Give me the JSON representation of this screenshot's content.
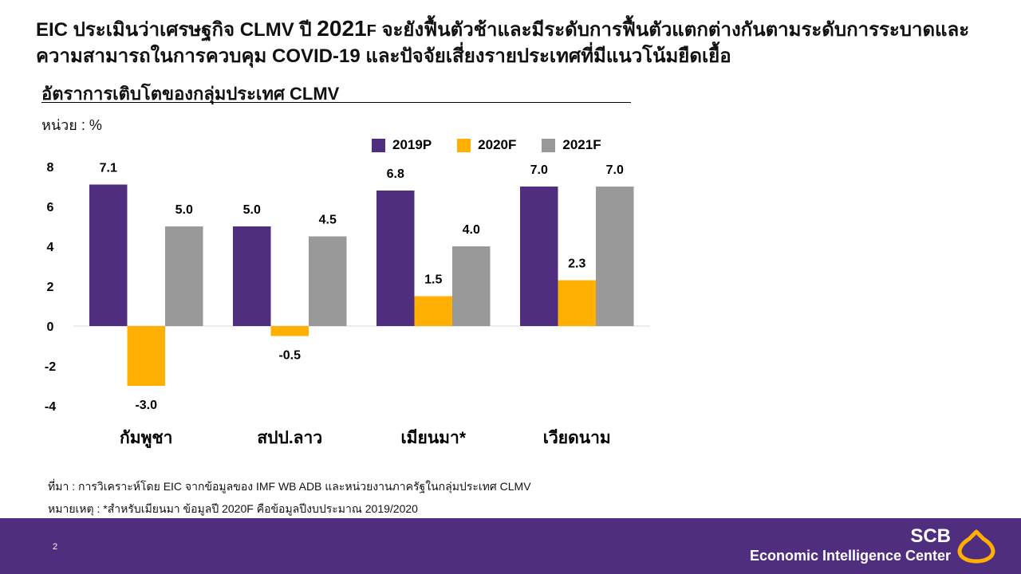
{
  "headline": {
    "part1": "EIC ประเมินว่าเศรษฐกิจ CLMV ปี ",
    "year": "2021",
    "suffix": "F",
    "part2": " จะยังฟื้นตัวช้าและมีระดับการฟื้นตัวแตกต่างกันตามระดับการระบาดและความสามารถในการควบคุม COVID-19 และปัจจัยเสี่ยงรายประเทศที่มีแนวโน้มยืดเยื้อ"
  },
  "subtitle": "อัตราการเติบโตของกลุ่มประเทศ CLMV",
  "unit_label": "หน่วย : %",
  "chart_data": {
    "type": "bar",
    "categories": [
      "กัมพูชา",
      "สปป.ลาว",
      "เมียนมา*",
      "เวียดนาม"
    ],
    "series": [
      {
        "name": "2019P",
        "values": [
          7.1,
          5.0,
          6.8,
          7.0
        ],
        "color": "#4f2d7f"
      },
      {
        "name": "2020F",
        "values": [
          -3.0,
          -0.5,
          1.5,
          2.3
        ],
        "color": "#ffb000"
      },
      {
        "name": "2021F",
        "values": [
          5.0,
          4.5,
          4.0,
          7.0
        ],
        "color": "#999999"
      }
    ],
    "yticks": [
      8,
      6,
      4,
      2,
      0,
      -2,
      -4
    ],
    "ylim": [
      -4,
      8
    ],
    "grid": false,
    "legend": "top-right"
  },
  "footnotes": {
    "source": "ที่มา : การวิเคราะห์โดย EIC จากข้อมูลของ IMF WB ADB และหน่วยงานภาครัฐในกลุ่มประเทศ CLMV",
    "note": "หมายเหตุ : *สำหรับเมียนมา ข้อมูลปี 2020F คือข้อมูลปีงบประมาณ 2019/2020"
  },
  "footer": {
    "page_number": "2",
    "brand_name": "SCB",
    "brand_sub": "Economic Intelligence Center",
    "logo_icon": "scb-emblem-icon",
    "bg_color": "#4f2d7f",
    "logo_color": "#ffb000"
  }
}
